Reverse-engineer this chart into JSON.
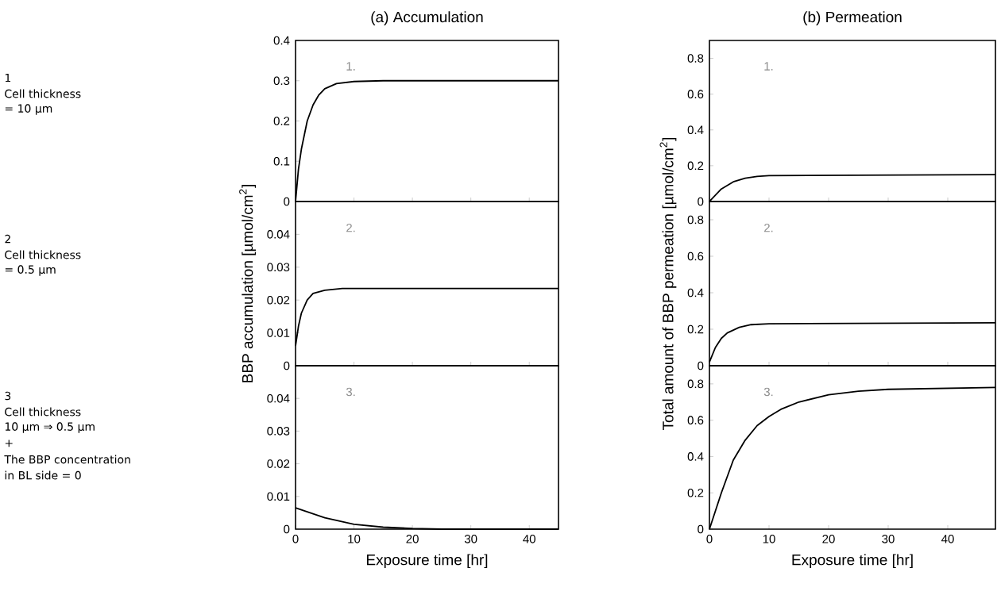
{
  "chart_data": [
    {
      "type": "line",
      "title": "(a) Accumulation",
      "x": [
        0,
        0.5,
        1,
        2,
        3,
        4,
        5,
        7,
        10,
        15,
        45
      ],
      "series": [
        {
          "color": "#000000",
          "values": [
            0,
            0.08,
            0.13,
            0.2,
            0.24,
            0.265,
            0.28,
            0.293,
            0.298,
            0.3,
            0.3
          ]
        }
      ],
      "xlim": [
        0,
        45
      ],
      "xticks": [
        0,
        10,
        20,
        30,
        40
      ],
      "ylim": [
        0,
        0.4
      ],
      "yticks": [
        0,
        0.1,
        0.2,
        0.3,
        0.4
      ],
      "tick_labels": "y",
      "annotations": [
        "1.",
        "1",
        "Cell thickness",
        "= 10 µm"
      ]
    },
    {
      "type": "line",
      "title": "(b) Permeation",
      "x": [
        0,
        2,
        4,
        6,
        8,
        10,
        48
      ],
      "series": [
        {
          "color": "#000000",
          "values": [
            0,
            0.07,
            0.11,
            0.13,
            0.14,
            0.145,
            0.15
          ]
        }
      ],
      "xlim": [
        0,
        48
      ],
      "xticks": [
        0,
        10,
        20,
        30,
        40
      ],
      "ylim": [
        0,
        0.9
      ],
      "yticks": [
        0,
        0.2,
        0.4,
        0.6,
        0.8
      ],
      "tick_labels": "y",
      "annotations": [
        "1."
      ]
    },
    {
      "type": "line",
      "ylabel": "BBP accumulation  [µmol/cm$^{2}$]",
      "x": [
        0,
        0.5,
        1,
        2,
        3,
        5,
        8,
        45
      ],
      "series": [
        {
          "color": "#000000",
          "values": [
            0.006,
            0.012,
            0.016,
            0.02,
            0.022,
            0.023,
            0.0235,
            0.0235
          ]
        }
      ],
      "xlim": [
        0,
        45
      ],
      "xticks": [
        0,
        10,
        20,
        30,
        40
      ],
      "ylim": [
        0,
        0.05
      ],
      "yticks": [
        0,
        0.01,
        0.02,
        0.03,
        0.04
      ],
      "tick_labels": "y",
      "annotations": [
        "2.",
        "2",
        "Cell thickness",
        "= 0.5 µm"
      ]
    },
    {
      "type": "line",
      "ylabel": "Total amount of BBP permeation  [µmol/cm$^{2}$]",
      "x": [
        0,
        1,
        2,
        3,
        5,
        7,
        10,
        48
      ],
      "series": [
        {
          "color": "#000000",
          "values": [
            0.02,
            0.1,
            0.15,
            0.18,
            0.21,
            0.225,
            0.23,
            0.235
          ]
        }
      ],
      "xlim": [
        0,
        48
      ],
      "xticks": [
        0,
        10,
        20,
        30,
        40
      ],
      "ylim": [
        0,
        0.9
      ],
      "yticks": [
        0,
        0.2,
        0.4,
        0.6,
        0.8
      ],
      "tick_labels": "y",
      "annotations": [
        "2."
      ]
    },
    {
      "type": "line",
      "xlabel": "Exposure time [hr]",
      "x": [
        0,
        5,
        10,
        15,
        20,
        25,
        45
      ],
      "series": [
        {
          "color": "#000000",
          "values": [
            0.0065,
            0.0035,
            0.0015,
            0.0006,
            0.0002,
            0,
            0
          ]
        }
      ],
      "xlim": [
        0,
        45
      ],
      "xticks": [
        0,
        10,
        20,
        30,
        40
      ],
      "ylim": [
        0,
        0.05
      ],
      "yticks": [
        0,
        0.01,
        0.02,
        0.03,
        0.04
      ],
      "annotations": [
        "3.",
        "3",
        "Cell thickness",
        "10 µm ⇒ 0.5 µm",
        "+",
        "The BBP concentration",
        "in BL side = 0"
      ]
    },
    {
      "type": "line",
      "xlabel": "Exposure time [hr]",
      "x": [
        0,
        2,
        4,
        6,
        8,
        10,
        12,
        15,
        20,
        25,
        30,
        48
      ],
      "series": [
        {
          "color": "#000000",
          "values": [
            0,
            0.2,
            0.38,
            0.49,
            0.57,
            0.62,
            0.66,
            0.7,
            0.74,
            0.76,
            0.77,
            0.78
          ]
        }
      ],
      "xlim": [
        0,
        48
      ],
      "xticks": [
        0,
        10,
        20,
        30,
        40
      ],
      "ylim": [
        0,
        0.9
      ],
      "yticks": [
        0,
        0.2,
        0.4,
        0.6,
        0.8
      ],
      "annotations": [
        "3."
      ]
    }
  ]
}
